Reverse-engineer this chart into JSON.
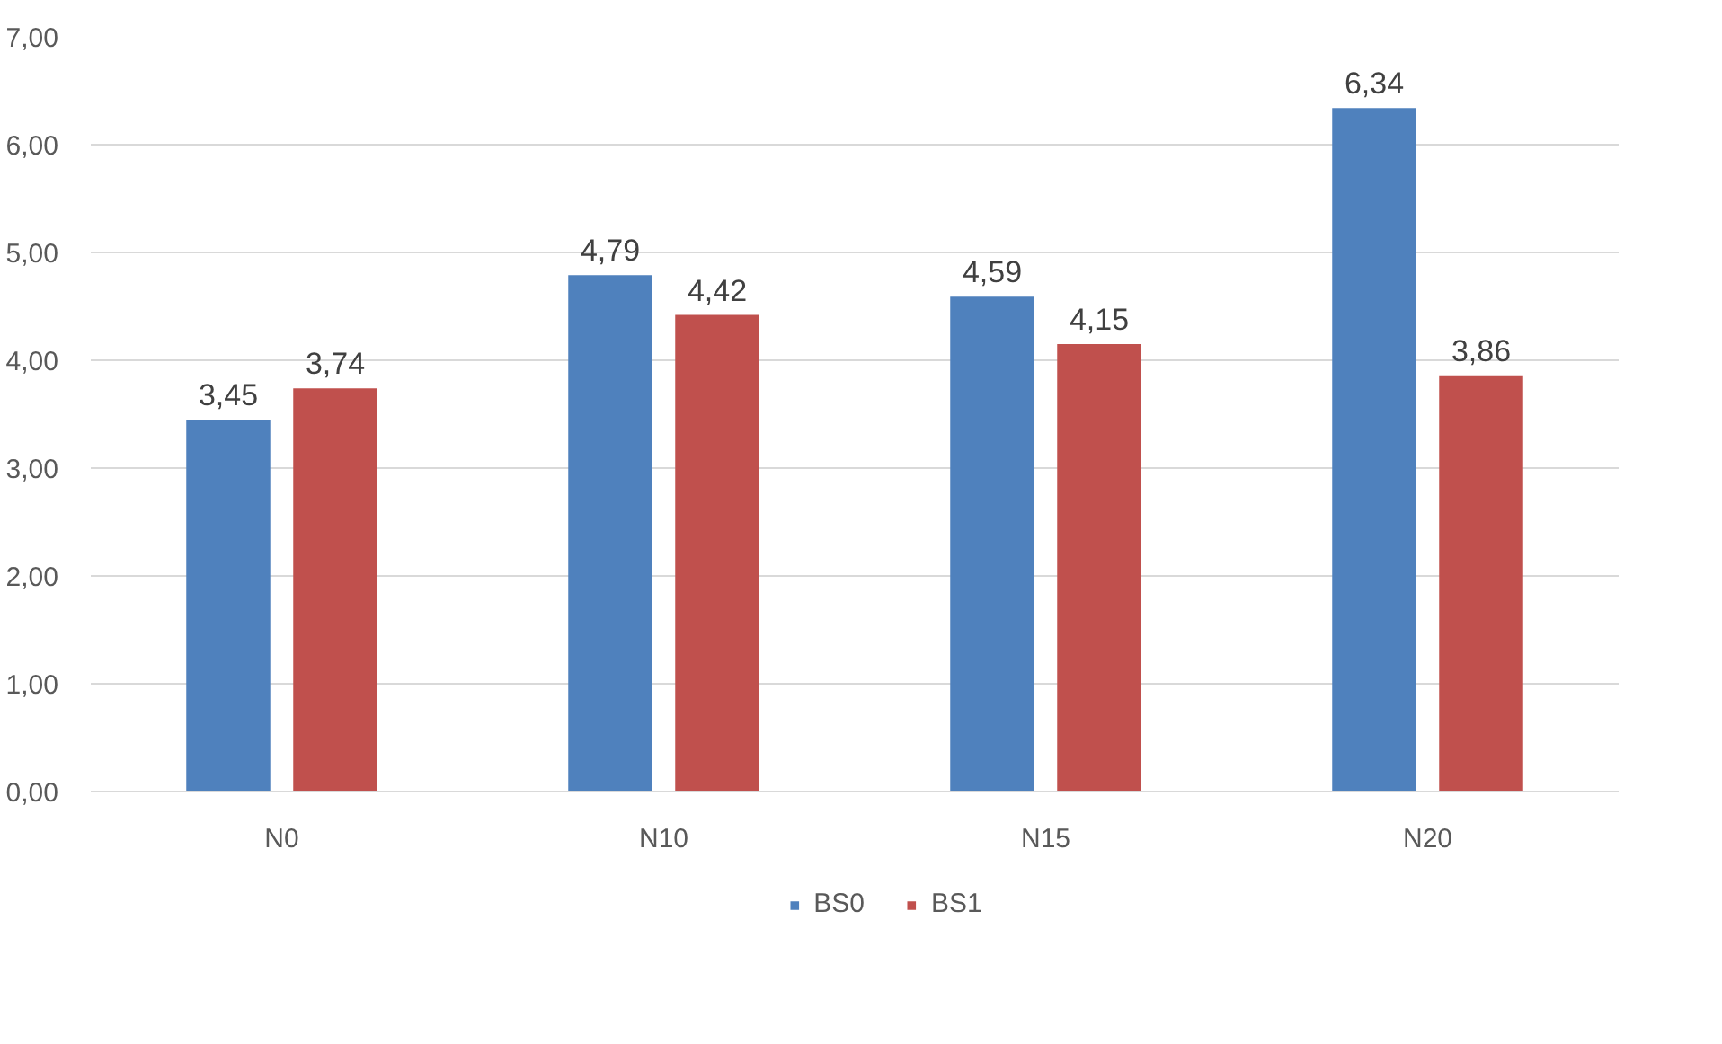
{
  "chart_data": {
    "type": "bar",
    "categories": [
      "N0",
      "N10",
      "N15",
      "N20"
    ],
    "series": [
      {
        "name": "BS0",
        "color": "#4f81bd",
        "values": [
          3.45,
          4.79,
          4.59,
          6.34
        ],
        "value_labels": [
          "3,45",
          "4,79",
          "4,59",
          "6,34"
        ]
      },
      {
        "name": "BS1",
        "color": "#c0504d",
        "values": [
          3.74,
          4.42,
          4.15,
          3.86
        ],
        "value_labels": [
          "3,74",
          "4,42",
          "4,15",
          "3,86"
        ]
      }
    ],
    "ylim": [
      0,
      7
    ],
    "yticks": [
      {
        "value": 0,
        "label": "0,00"
      },
      {
        "value": 1,
        "label": "1,00"
      },
      {
        "value": 2,
        "label": "2,00"
      },
      {
        "value": 3,
        "label": "3,00"
      },
      {
        "value": 4,
        "label": "4,00"
      },
      {
        "value": 5,
        "label": "5,00"
      },
      {
        "value": 6,
        "label": "6,00"
      },
      {
        "value": 7,
        "label": "7,00"
      }
    ],
    "grid": "y",
    "legend": "bottom"
  }
}
